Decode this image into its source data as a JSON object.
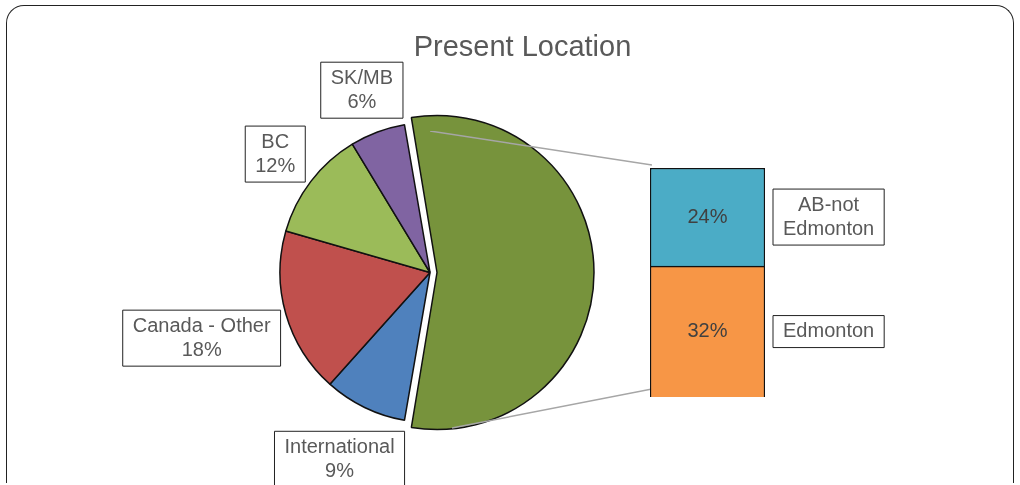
{
  "chart_data": [
    {
      "type": "pie",
      "title": "Present Location",
      "categories": [
        null,
        "International",
        "Canada - Other",
        "BC",
        "SK/MB"
      ],
      "values": [
        56,
        9,
        18,
        12,
        6
      ],
      "colors": [
        "#77933c",
        "#4f81bd",
        "#c0504d",
        "#9bbb59",
        "#8064a2"
      ],
      "value_labels": [
        null,
        "9%",
        "18%",
        "12%",
        "6%"
      ]
    },
    {
      "type": "bar",
      "stacked": true,
      "categories": [
        null
      ],
      "series": [
        {
          "name": "Edmonton",
          "color": "#f79646",
          "values": [
            32
          ],
          "value_labels": [
            "32%"
          ]
        },
        {
          "name": "AB-not Edmonton",
          "color": "#4bacc6",
          "values": [
            24
          ],
          "value_labels": [
            "24%"
          ]
        }
      ]
    }
  ]
}
